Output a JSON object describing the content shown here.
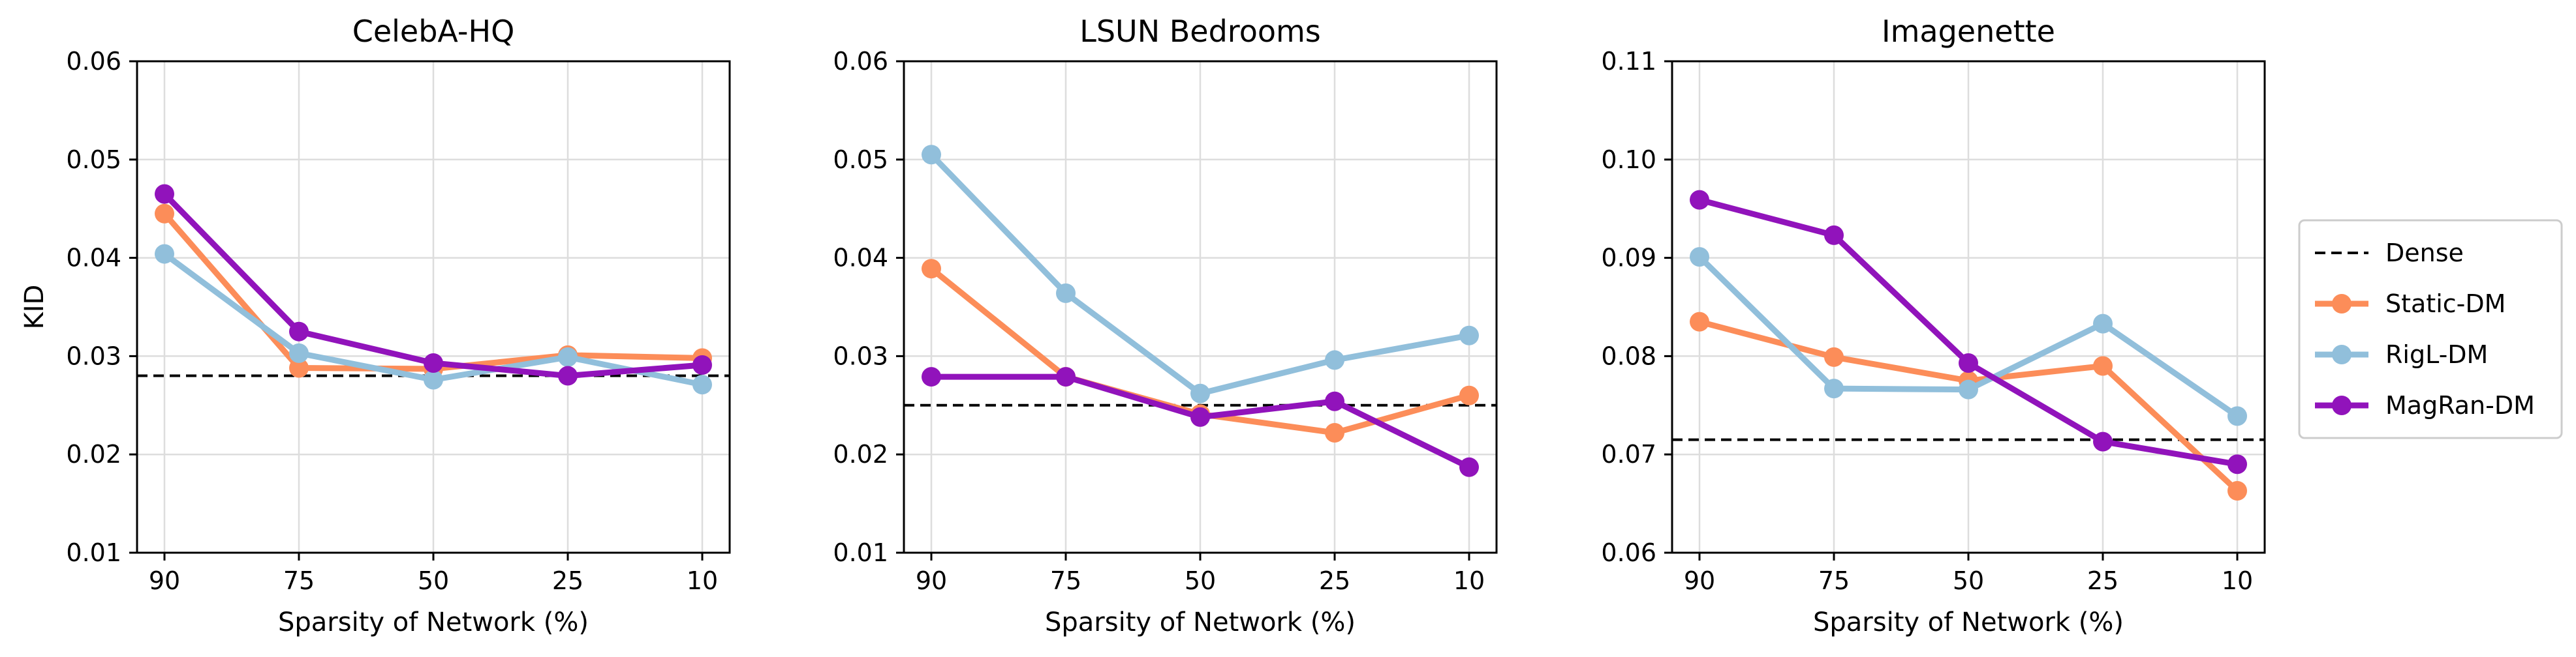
{
  "chart_data": [
    {
      "type": "line",
      "title": "CelebA-HQ",
      "xlabel": "Sparsity of Network (%)",
      "ylabel": "KID",
      "categories": [
        "90",
        "75",
        "50",
        "25",
        "10"
      ],
      "ylim": [
        0.01,
        0.06
      ],
      "yticks": [
        "0.01",
        "0.02",
        "0.03",
        "0.04",
        "0.05",
        "0.06"
      ],
      "grid": true,
      "reference_line": {
        "name": "Dense",
        "value": 0.028
      },
      "series": [
        {
          "name": "Static-DM",
          "values": [
            0.0445,
            0.0288,
            0.0287,
            0.0301,
            0.0298
          ]
        },
        {
          "name": "RigL-DM",
          "values": [
            0.0404,
            0.0303,
            0.0276,
            0.0299,
            0.0271
          ]
        },
        {
          "name": "MagRan-DM",
          "values": [
            0.0465,
            0.0325,
            0.0293,
            0.028,
            0.0291
          ]
        }
      ]
    },
    {
      "type": "line",
      "title": "LSUN Bedrooms",
      "xlabel": "Sparsity of Network (%)",
      "ylabel": "",
      "categories": [
        "90",
        "75",
        "50",
        "25",
        "10"
      ],
      "ylim": [
        0.01,
        0.06
      ],
      "yticks": [
        "0.01",
        "0.02",
        "0.03",
        "0.04",
        "0.05",
        "0.06"
      ],
      "grid": true,
      "reference_line": {
        "name": "Dense",
        "value": 0.025
      },
      "series": [
        {
          "name": "Static-DM",
          "values": [
            0.0389,
            0.0279,
            0.0241,
            0.0222,
            0.026
          ]
        },
        {
          "name": "RigL-DM",
          "values": [
            0.0505,
            0.0364,
            0.0262,
            0.0296,
            0.0321
          ]
        },
        {
          "name": "MagRan-DM",
          "values": [
            0.0279,
            0.0279,
            0.0238,
            0.0254,
            0.0187
          ]
        }
      ]
    },
    {
      "type": "line",
      "title": "Imagenette",
      "xlabel": "Sparsity of Network (%)",
      "ylabel": "",
      "categories": [
        "90",
        "75",
        "50",
        "25",
        "10"
      ],
      "ylim": [
        0.06,
        0.11
      ],
      "yticks": [
        "0.06",
        "0.07",
        "0.08",
        "0.09",
        "0.10",
        "0.11"
      ],
      "grid": true,
      "reference_line": {
        "name": "Dense",
        "value": 0.0715
      },
      "series": [
        {
          "name": "Static-DM",
          "values": [
            0.0835,
            0.0799,
            0.0775,
            0.079,
            0.0663
          ]
        },
        {
          "name": "RigL-DM",
          "values": [
            0.0901,
            0.0767,
            0.0766,
            0.0833,
            0.0739
          ]
        },
        {
          "name": "MagRan-DM",
          "values": [
            0.0959,
            0.0923,
            0.0793,
            0.0713,
            0.069
          ]
        }
      ]
    }
  ],
  "legend": {
    "placement": "right",
    "entries": [
      {
        "name": "Dense",
        "style": "dashed",
        "color": "#000000"
      },
      {
        "name": "Static-DM",
        "style": "line-marker",
        "color": "#FC8D59"
      },
      {
        "name": "RigL-DM",
        "style": "line-marker",
        "color": "#91BFDB"
      },
      {
        "name": "MagRan-DM",
        "style": "line-marker",
        "color": "#9113BB"
      }
    ]
  },
  "colors": {
    "Static-DM": "#FC8D59",
    "RigL-DM": "#91BFDB",
    "MagRan-DM": "#9113BB",
    "Dense": "#000000",
    "grid": "#DDDDDD"
  }
}
